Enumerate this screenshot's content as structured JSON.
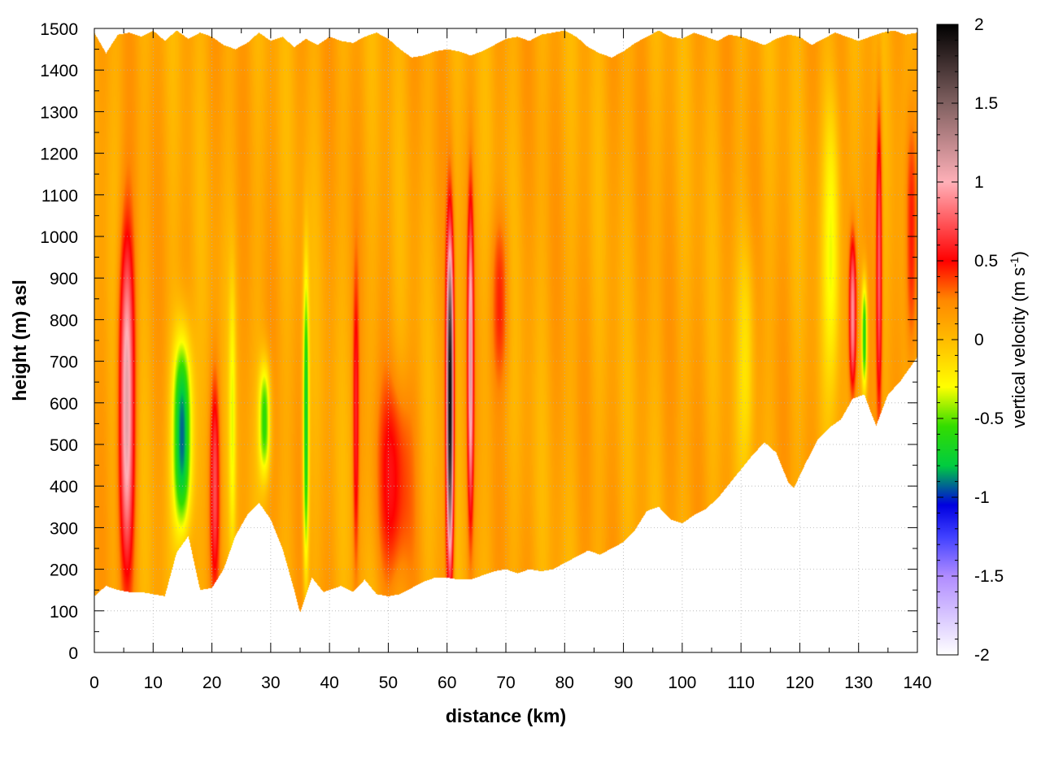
{
  "chart_data": {
    "type": "heatmap",
    "xlabel": "distance (km)",
    "ylabel": "height (m) asl",
    "colorbar_label": "vertical velocity (m s",
    "colorbar_label_sup": "-1",
    "colorbar_label_end": ")",
    "xlim": [
      0,
      140
    ],
    "ylim": [
      0,
      1500
    ],
    "zlim": [
      -2,
      2
    ],
    "x_ticks": [
      "0",
      "10",
      "20",
      "30",
      "40",
      "50",
      "60",
      "70",
      "80",
      "90",
      "100",
      "110",
      "120",
      "130",
      "140"
    ],
    "y_ticks": [
      "0",
      "100",
      "200",
      "300",
      "400",
      "500",
      "600",
      "700",
      "800",
      "900",
      "1000",
      "1100",
      "1200",
      "1300",
      "1400",
      "1500"
    ],
    "colorbar_ticks": [
      "2",
      "1.5",
      "1",
      "0.5",
      "0",
      "-0.5",
      "-1",
      "-1.5",
      "-2"
    ],
    "grid": true,
    "colormap": [
      {
        "v": -2.0,
        "color": "#ffffff"
      },
      {
        "v": -1.5,
        "color": "#b08cff"
      },
      {
        "v": -1.25,
        "color": "#4040ff"
      },
      {
        "v": -1.05,
        "color": "#0000e0"
      },
      {
        "v": -0.8,
        "color": "#00cc40"
      },
      {
        "v": -0.55,
        "color": "#33dd00"
      },
      {
        "v": -0.3,
        "color": "#ffff00"
      },
      {
        "v": 0.0,
        "color": "#ffbb00"
      },
      {
        "v": 0.25,
        "color": "#ff8800"
      },
      {
        "v": 0.5,
        "color": "#ff0000"
      },
      {
        "v": 1.0,
        "color": "#ffb0b8"
      },
      {
        "v": 1.5,
        "color": "#806060"
      },
      {
        "v": 2.0,
        "color": "#000000"
      }
    ],
    "terrain_height": [
      [
        0,
        135
      ],
      [
        2,
        160
      ],
      [
        4,
        150
      ],
      [
        6,
        145
      ],
      [
        8,
        145
      ],
      [
        10,
        140
      ],
      [
        12,
        135
      ],
      [
        14,
        240
      ],
      [
        16,
        280
      ],
      [
        18,
        150
      ],
      [
        20,
        155
      ],
      [
        22,
        200
      ],
      [
        24,
        280
      ],
      [
        26,
        330
      ],
      [
        28,
        360
      ],
      [
        30,
        320
      ],
      [
        32,
        250
      ],
      [
        34,
        150
      ],
      [
        35,
        95
      ],
      [
        37,
        180
      ],
      [
        39,
        145
      ],
      [
        42,
        160
      ],
      [
        44,
        145
      ],
      [
        46,
        175
      ],
      [
        48,
        140
      ],
      [
        50,
        135
      ],
      [
        52,
        140
      ],
      [
        54,
        155
      ],
      [
        56,
        170
      ],
      [
        58,
        180
      ],
      [
        60,
        180
      ],
      [
        62,
        175
      ],
      [
        64,
        175
      ],
      [
        66,
        185
      ],
      [
        68,
        195
      ],
      [
        70,
        200
      ],
      [
        72,
        190
      ],
      [
        74,
        200
      ],
      [
        76,
        195
      ],
      [
        78,
        200
      ],
      [
        80,
        215
      ],
      [
        82,
        230
      ],
      [
        84,
        245
      ],
      [
        86,
        235
      ],
      [
        88,
        250
      ],
      [
        90,
        265
      ],
      [
        92,
        295
      ],
      [
        94,
        340
      ],
      [
        96,
        350
      ],
      [
        98,
        320
      ],
      [
        100,
        310
      ],
      [
        102,
        330
      ],
      [
        104,
        345
      ],
      [
        106,
        370
      ],
      [
        108,
        405
      ],
      [
        110,
        440
      ],
      [
        112,
        475
      ],
      [
        114,
        505
      ],
      [
        116,
        480
      ],
      [
        118,
        410
      ],
      [
        119,
        395
      ],
      [
        121,
        455
      ],
      [
        123,
        510
      ],
      [
        125,
        540
      ],
      [
        127,
        560
      ],
      [
        129,
        610
      ],
      [
        131,
        620
      ],
      [
        132,
        580
      ],
      [
        133,
        545
      ],
      [
        135,
        620
      ],
      [
        137,
        650
      ],
      [
        139,
        690
      ],
      [
        140,
        710
      ]
    ],
    "top_height": [
      [
        0,
        1490
      ],
      [
        2,
        1440
      ],
      [
        4,
        1485
      ],
      [
        6,
        1490
      ],
      [
        8,
        1480
      ],
      [
        10,
        1495
      ],
      [
        12,
        1470
      ],
      [
        14,
        1495
      ],
      [
        16,
        1475
      ],
      [
        18,
        1490
      ],
      [
        20,
        1480
      ],
      [
        22,
        1460
      ],
      [
        24,
        1450
      ],
      [
        26,
        1465
      ],
      [
        28,
        1490
      ],
      [
        30,
        1470
      ],
      [
        32,
        1480
      ],
      [
        34,
        1455
      ],
      [
        36,
        1475
      ],
      [
        38,
        1460
      ],
      [
        40,
        1480
      ],
      [
        42,
        1470
      ],
      [
        44,
        1465
      ],
      [
        46,
        1480
      ],
      [
        48,
        1490
      ],
      [
        50,
        1475
      ],
      [
        52,
        1450
      ],
      [
        54,
        1430
      ],
      [
        56,
        1435
      ],
      [
        58,
        1445
      ],
      [
        60,
        1450
      ],
      [
        62,
        1445
      ],
      [
        64,
        1435
      ],
      [
        66,
        1445
      ],
      [
        68,
        1460
      ],
      [
        70,
        1475
      ],
      [
        72,
        1480
      ],
      [
        74,
        1470
      ],
      [
        76,
        1485
      ],
      [
        78,
        1490
      ],
      [
        80,
        1495
      ],
      [
        82,
        1480
      ],
      [
        84,
        1455
      ],
      [
        86,
        1440
      ],
      [
        88,
        1430
      ],
      [
        90,
        1445
      ],
      [
        92,
        1465
      ],
      [
        94,
        1480
      ],
      [
        96,
        1495
      ],
      [
        98,
        1480
      ],
      [
        100,
        1475
      ],
      [
        102,
        1490
      ],
      [
        104,
        1480
      ],
      [
        106,
        1470
      ],
      [
        108,
        1485
      ],
      [
        110,
        1480
      ],
      [
        112,
        1470
      ],
      [
        114,
        1460
      ],
      [
        116,
        1475
      ],
      [
        118,
        1485
      ],
      [
        120,
        1480
      ],
      [
        122,
        1460
      ],
      [
        124,
        1475
      ],
      [
        126,
        1490
      ],
      [
        128,
        1480
      ],
      [
        130,
        1470
      ],
      [
        132,
        1480
      ],
      [
        134,
        1490
      ],
      [
        136,
        1495
      ],
      [
        138,
        1485
      ],
      [
        140,
        1490
      ]
    ],
    "features": [
      {
        "x": 5.5,
        "z_bottom": 200,
        "z_top": 1000,
        "amp": 1.0,
        "width_km": 1.3
      },
      {
        "x": 15,
        "z_bottom": 290,
        "z_top": 760,
        "amp": -1.1,
        "width_km": 1.6
      },
      {
        "x": 20.5,
        "z_bottom": 160,
        "z_top": 660,
        "amp": 0.55,
        "width_km": 0.8
      },
      {
        "x": 23.5,
        "z_bottom": 220,
        "z_top": 900,
        "amp": -0.35,
        "width_km": 0.6
      },
      {
        "x": 29,
        "z_bottom": 420,
        "z_top": 700,
        "amp": -0.7,
        "width_km": 1.0
      },
      {
        "x": 36,
        "z_bottom": 180,
        "z_top": 920,
        "amp": -0.85,
        "width_km": 0.5
      },
      {
        "x": 44.5,
        "z_bottom": 200,
        "z_top": 900,
        "amp": 0.45,
        "width_km": 0.5
      },
      {
        "x": 51,
        "z_bottom": 180,
        "z_top": 650,
        "amp": 0.4,
        "width_km": 3.0
      },
      {
        "x": 60.5,
        "z_bottom": 200,
        "z_top": 1000,
        "amp": 1.9,
        "width_km": 0.6
      },
      {
        "x": 64,
        "z_bottom": 320,
        "z_top": 1080,
        "amp": 0.95,
        "width_km": 0.5
      },
      {
        "x": 69,
        "z_bottom": 650,
        "z_top": 1050,
        "amp": 0.3,
        "width_km": 1.5
      },
      {
        "x": 111,
        "z_bottom": 450,
        "z_top": 1000,
        "amp": -0.25,
        "width_km": 1.5
      },
      {
        "x": 125.5,
        "z_bottom": 650,
        "z_top": 1350,
        "amp": -0.4,
        "width_km": 1.5
      },
      {
        "x": 129,
        "z_bottom": 620,
        "z_top": 1000,
        "amp": 0.85,
        "width_km": 0.6
      },
      {
        "x": 131,
        "z_bottom": 620,
        "z_top": 900,
        "amp": -0.8,
        "width_km": 0.5
      },
      {
        "x": 133.5,
        "z_bottom": 560,
        "z_top": 1330,
        "amp": 0.7,
        "width_km": 0.5
      },
      {
        "x": 139,
        "z_bottom": 700,
        "z_top": 1300,
        "amp": 0.45,
        "width_km": 1.0
      }
    ]
  }
}
